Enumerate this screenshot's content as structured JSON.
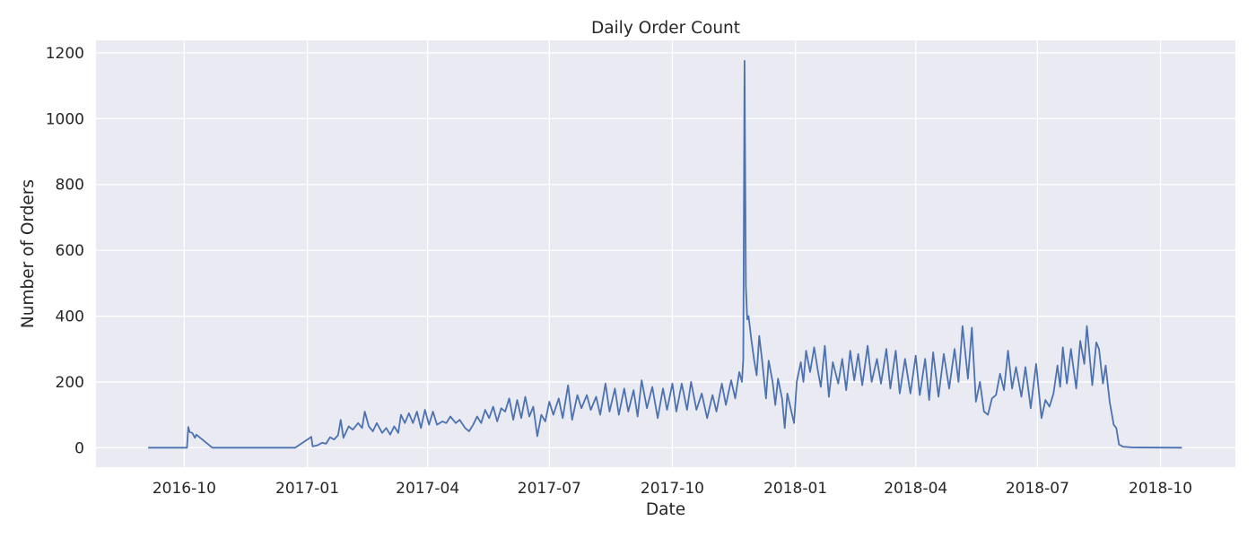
{
  "chart_data": {
    "type": "line",
    "title": "Daily Order Count",
    "xlabel": "Date",
    "ylabel": "Number of Orders",
    "xlim": [
      "2016-07-27",
      "2018-11-26"
    ],
    "ylim": [
      -59,
      1238
    ],
    "grid": true,
    "colors": {
      "background": "#eaeaf2",
      "line": "#4c72b0",
      "grid": "#ffffff",
      "text": "#262626"
    },
    "x_ticks": [
      "2016-10",
      "2017-01",
      "2017-04",
      "2017-07",
      "2017-10",
      "2018-01",
      "2018-04",
      "2018-07",
      "2018-10"
    ],
    "y_ticks": [
      0,
      200,
      400,
      600,
      800,
      1000,
      1200
    ],
    "series": [
      {
        "points": [
          [
            "2016-09-04",
            0
          ],
          [
            "2016-10-03",
            0
          ],
          [
            "2016-10-04",
            63
          ],
          [
            "2016-10-05",
            48
          ],
          [
            "2016-10-07",
            45
          ],
          [
            "2016-10-09",
            30
          ],
          [
            "2016-10-10",
            40
          ],
          [
            "2016-10-22",
            0
          ],
          [
            "2016-12-23",
            0
          ],
          [
            "2017-01-04",
            33
          ],
          [
            "2017-01-05",
            4
          ],
          [
            "2017-01-09",
            8
          ],
          [
            "2017-01-12",
            15
          ],
          [
            "2017-01-15",
            12
          ],
          [
            "2017-01-18",
            32
          ],
          [
            "2017-01-21",
            25
          ],
          [
            "2017-01-24",
            38
          ],
          [
            "2017-01-26",
            85
          ],
          [
            "2017-01-28",
            30
          ],
          [
            "2017-02-01",
            65
          ],
          [
            "2017-02-04",
            55
          ],
          [
            "2017-02-08",
            75
          ],
          [
            "2017-02-11",
            60
          ],
          [
            "2017-02-13",
            110
          ],
          [
            "2017-02-16",
            65
          ],
          [
            "2017-02-19",
            50
          ],
          [
            "2017-02-22",
            75
          ],
          [
            "2017-02-26",
            45
          ],
          [
            "2017-03-01",
            60
          ],
          [
            "2017-03-04",
            40
          ],
          [
            "2017-03-07",
            65
          ],
          [
            "2017-03-10",
            45
          ],
          [
            "2017-03-12",
            100
          ],
          [
            "2017-03-15",
            75
          ],
          [
            "2017-03-18",
            105
          ],
          [
            "2017-03-21",
            75
          ],
          [
            "2017-03-24",
            110
          ],
          [
            "2017-03-27",
            60
          ],
          [
            "2017-03-30",
            115
          ],
          [
            "2017-04-02",
            70
          ],
          [
            "2017-04-05",
            110
          ],
          [
            "2017-04-08",
            70
          ],
          [
            "2017-04-12",
            80
          ],
          [
            "2017-04-15",
            75
          ],
          [
            "2017-04-18",
            95
          ],
          [
            "2017-04-22",
            75
          ],
          [
            "2017-04-25",
            85
          ],
          [
            "2017-04-29",
            60
          ],
          [
            "2017-05-02",
            50
          ],
          [
            "2017-05-05",
            70
          ],
          [
            "2017-05-08",
            95
          ],
          [
            "2017-05-11",
            75
          ],
          [
            "2017-05-14",
            115
          ],
          [
            "2017-05-17",
            90
          ],
          [
            "2017-05-20",
            125
          ],
          [
            "2017-05-23",
            80
          ],
          [
            "2017-05-26",
            120
          ],
          [
            "2017-05-29",
            110
          ],
          [
            "2017-06-01",
            150
          ],
          [
            "2017-06-04",
            85
          ],
          [
            "2017-06-07",
            145
          ],
          [
            "2017-06-10",
            90
          ],
          [
            "2017-06-13",
            155
          ],
          [
            "2017-06-16",
            95
          ],
          [
            "2017-06-19",
            125
          ],
          [
            "2017-06-22",
            35
          ],
          [
            "2017-06-25",
            100
          ],
          [
            "2017-06-28",
            80
          ],
          [
            "2017-07-01",
            140
          ],
          [
            "2017-07-04",
            100
          ],
          [
            "2017-07-08",
            150
          ],
          [
            "2017-07-11",
            90
          ],
          [
            "2017-07-15",
            190
          ],
          [
            "2017-07-18",
            85
          ],
          [
            "2017-07-22",
            160
          ],
          [
            "2017-07-25",
            120
          ],
          [
            "2017-07-29",
            160
          ],
          [
            "2017-08-01",
            115
          ],
          [
            "2017-08-05",
            155
          ],
          [
            "2017-08-08",
            100
          ],
          [
            "2017-08-12",
            195
          ],
          [
            "2017-08-15",
            110
          ],
          [
            "2017-08-19",
            180
          ],
          [
            "2017-08-22",
            100
          ],
          [
            "2017-08-26",
            180
          ],
          [
            "2017-08-29",
            110
          ],
          [
            "2017-09-02",
            175
          ],
          [
            "2017-09-05",
            95
          ],
          [
            "2017-09-08",
            205
          ],
          [
            "2017-09-12",
            120
          ],
          [
            "2017-09-16",
            185
          ],
          [
            "2017-09-20",
            90
          ],
          [
            "2017-09-24",
            180
          ],
          [
            "2017-09-27",
            115
          ],
          [
            "2017-10-01",
            195
          ],
          [
            "2017-10-04",
            110
          ],
          [
            "2017-10-08",
            195
          ],
          [
            "2017-10-12",
            115
          ],
          [
            "2017-10-15",
            200
          ],
          [
            "2017-10-19",
            115
          ],
          [
            "2017-10-23",
            165
          ],
          [
            "2017-10-27",
            90
          ],
          [
            "2017-10-31",
            160
          ],
          [
            "2017-11-03",
            110
          ],
          [
            "2017-11-07",
            195
          ],
          [
            "2017-11-10",
            130
          ],
          [
            "2017-11-14",
            205
          ],
          [
            "2017-11-17",
            150
          ],
          [
            "2017-11-20",
            230
          ],
          [
            "2017-11-22",
            200
          ],
          [
            "2017-11-23",
            270
          ],
          [
            "2017-11-24",
            1176
          ],
          [
            "2017-11-25",
            490
          ],
          [
            "2017-11-26",
            390
          ],
          [
            "2017-11-27",
            400
          ],
          [
            "2017-11-29",
            330
          ],
          [
            "2017-12-01",
            270
          ],
          [
            "2017-12-03",
            220
          ],
          [
            "2017-12-05",
            340
          ],
          [
            "2017-12-07",
            270
          ],
          [
            "2017-12-10",
            150
          ],
          [
            "2017-12-12",
            265
          ],
          [
            "2017-12-15",
            200
          ],
          [
            "2017-12-17",
            130
          ],
          [
            "2017-12-19",
            210
          ],
          [
            "2017-12-22",
            150
          ],
          [
            "2017-12-24",
            60
          ],
          [
            "2017-12-26",
            165
          ],
          [
            "2017-12-29",
            110
          ],
          [
            "2017-12-31",
            75
          ],
          [
            "2018-01-02",
            200
          ],
          [
            "2018-01-05",
            260
          ],
          [
            "2018-01-07",
            200
          ],
          [
            "2018-01-09",
            295
          ],
          [
            "2018-01-12",
            230
          ],
          [
            "2018-01-15",
            305
          ],
          [
            "2018-01-18",
            230
          ],
          [
            "2018-01-20",
            185
          ],
          [
            "2018-01-23",
            310
          ],
          [
            "2018-01-26",
            155
          ],
          [
            "2018-01-29",
            260
          ],
          [
            "2018-02-02",
            195
          ],
          [
            "2018-02-05",
            270
          ],
          [
            "2018-02-08",
            175
          ],
          [
            "2018-02-11",
            295
          ],
          [
            "2018-02-14",
            205
          ],
          [
            "2018-02-17",
            285
          ],
          [
            "2018-02-20",
            190
          ],
          [
            "2018-02-24",
            310
          ],
          [
            "2018-02-27",
            200
          ],
          [
            "2018-03-03",
            270
          ],
          [
            "2018-03-06",
            195
          ],
          [
            "2018-03-10",
            300
          ],
          [
            "2018-03-13",
            180
          ],
          [
            "2018-03-17",
            295
          ],
          [
            "2018-03-20",
            165
          ],
          [
            "2018-03-24",
            270
          ],
          [
            "2018-03-28",
            165
          ],
          [
            "2018-04-01",
            280
          ],
          [
            "2018-04-04",
            160
          ],
          [
            "2018-04-08",
            270
          ],
          [
            "2018-04-11",
            145
          ],
          [
            "2018-04-14",
            290
          ],
          [
            "2018-04-18",
            155
          ],
          [
            "2018-04-22",
            285
          ],
          [
            "2018-04-26",
            180
          ],
          [
            "2018-04-30",
            300
          ],
          [
            "2018-05-03",
            200
          ],
          [
            "2018-05-06",
            370
          ],
          [
            "2018-05-10",
            210
          ],
          [
            "2018-05-13",
            365
          ],
          [
            "2018-05-16",
            140
          ],
          [
            "2018-05-19",
            200
          ],
          [
            "2018-05-22",
            110
          ],
          [
            "2018-05-25",
            100
          ],
          [
            "2018-05-28",
            150
          ],
          [
            "2018-05-31",
            160
          ],
          [
            "2018-06-03",
            225
          ],
          [
            "2018-06-06",
            175
          ],
          [
            "2018-06-09",
            295
          ],
          [
            "2018-06-12",
            180
          ],
          [
            "2018-06-15",
            245
          ],
          [
            "2018-06-19",
            155
          ],
          [
            "2018-06-22",
            245
          ],
          [
            "2018-06-26",
            120
          ],
          [
            "2018-06-30",
            255
          ],
          [
            "2018-07-04",
            90
          ],
          [
            "2018-07-07",
            145
          ],
          [
            "2018-07-10",
            125
          ],
          [
            "2018-07-13",
            165
          ],
          [
            "2018-07-16",
            250
          ],
          [
            "2018-07-18",
            185
          ],
          [
            "2018-07-20",
            305
          ],
          [
            "2018-07-23",
            195
          ],
          [
            "2018-07-26",
            300
          ],
          [
            "2018-07-30",
            180
          ],
          [
            "2018-08-02",
            325
          ],
          [
            "2018-08-05",
            255
          ],
          [
            "2018-08-07",
            370
          ],
          [
            "2018-08-11",
            190
          ],
          [
            "2018-08-14",
            320
          ],
          [
            "2018-08-16",
            300
          ],
          [
            "2018-08-19",
            195
          ],
          [
            "2018-08-21",
            250
          ],
          [
            "2018-08-24",
            140
          ],
          [
            "2018-08-27",
            70
          ],
          [
            "2018-08-29",
            60
          ],
          [
            "2018-08-31",
            10
          ],
          [
            "2018-09-03",
            3
          ],
          [
            "2018-09-10",
            1
          ],
          [
            "2018-10-17",
            0
          ]
        ]
      }
    ]
  }
}
